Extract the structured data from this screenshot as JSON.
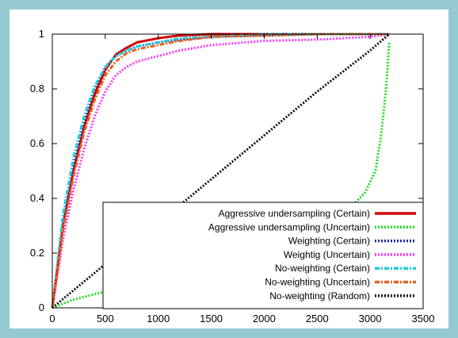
{
  "chart_data": {
    "type": "line",
    "title": "",
    "xlabel": "",
    "ylabel": "",
    "xlim": [
      0,
      3500
    ],
    "ylim": [
      0,
      1
    ],
    "x_ticks": [
      0,
      500,
      1000,
      1500,
      2000,
      2500,
      3000,
      3500
    ],
    "y_ticks": [
      0,
      0.2,
      0.4,
      0.6,
      0.8,
      1
    ],
    "x_tick_labels": [
      "0",
      "500",
      "1000",
      "1500",
      "2000",
      "2500",
      "3000",
      "3500"
    ],
    "y_tick_labels": [
      "0",
      "0.2",
      "0.4",
      "0.6",
      "0.8",
      "1"
    ],
    "grid": false,
    "legend_position": "bottom-right",
    "series": [
      {
        "name": "Aggressive undersampling (Certain)",
        "color": "#d40000",
        "dash": "solid",
        "x": [
          0,
          50,
          100,
          200,
          300,
          400,
          500,
          600,
          700,
          800,
          1000,
          1200,
          1500,
          2000,
          2500,
          3000,
          3180
        ],
        "y": [
          0.0,
          0.15,
          0.3,
          0.5,
          0.66,
          0.78,
          0.87,
          0.925,
          0.95,
          0.97,
          0.985,
          0.995,
          1.0,
          1.0,
          1.0,
          1.0,
          1.0
        ]
      },
      {
        "name": "Aggressive undersampling (Uncertain)",
        "color": "#22dd22",
        "dash": "dotted",
        "x": [
          0,
          200,
          500,
          1000,
          1500,
          2000,
          2500,
          2800,
          2950,
          3050,
          3100,
          3150,
          3180
        ],
        "y": [
          0.0,
          0.03,
          0.06,
          0.1,
          0.15,
          0.22,
          0.3,
          0.36,
          0.42,
          0.5,
          0.62,
          0.8,
          0.97
        ]
      },
      {
        "name": "Weighting (Certain)",
        "color": "#1a2aa8",
        "dash": "dotted",
        "x": [
          0,
          50,
          100,
          200,
          300,
          400,
          500,
          600,
          700,
          800,
          1000,
          1200,
          1500,
          2000,
          2500,
          3000,
          3180
        ],
        "y": [
          0.0,
          0.16,
          0.32,
          0.52,
          0.68,
          0.8,
          0.88,
          0.92,
          0.94,
          0.955,
          0.97,
          0.98,
          0.99,
          0.995,
          1.0,
          1.0,
          1.0
        ]
      },
      {
        "name": "Weightig (Uncertain)",
        "color": "#ff33ff",
        "dash": "dotted",
        "x": [
          0,
          50,
          100,
          200,
          300,
          400,
          500,
          600,
          700,
          800,
          1000,
          1200,
          1500,
          2000,
          2500,
          3000,
          3180
        ],
        "y": [
          0.0,
          0.12,
          0.25,
          0.43,
          0.58,
          0.7,
          0.79,
          0.85,
          0.88,
          0.9,
          0.92,
          0.94,
          0.96,
          0.975,
          0.98,
          0.99,
          1.0
        ]
      },
      {
        "name": "No-weighting (Certain)",
        "color": "#22ccdd",
        "dash": "dashdot",
        "x": [
          0,
          50,
          100,
          200,
          300,
          400,
          500,
          600,
          700,
          800,
          1000,
          1200,
          1500,
          2000,
          2500,
          3000,
          3180
        ],
        "y": [
          0.0,
          0.17,
          0.34,
          0.55,
          0.7,
          0.81,
          0.88,
          0.92,
          0.94,
          0.955,
          0.97,
          0.985,
          0.99,
          1.0,
          1.0,
          1.0,
          1.0
        ]
      },
      {
        "name": "No-weighting (Uncertain)",
        "color": "#e8601c",
        "dash": "dashdot",
        "x": [
          0,
          50,
          100,
          200,
          300,
          400,
          500,
          600,
          700,
          800,
          1000,
          1200,
          1500,
          2000,
          2500,
          3000,
          3180
        ],
        "y": [
          0.0,
          0.14,
          0.28,
          0.48,
          0.64,
          0.76,
          0.85,
          0.9,
          0.93,
          0.945,
          0.96,
          0.975,
          0.99,
          0.995,
          1.0,
          1.0,
          1.0
        ]
      },
      {
        "name": "No-weighting (Random)",
        "color": "#111111",
        "dash": "dotted",
        "x": [
          0,
          500,
          1000,
          1500,
          2000,
          2500,
          3000,
          3180
        ],
        "y": [
          0.0,
          0.16,
          0.31,
          0.47,
          0.63,
          0.79,
          0.94,
          1.0
        ]
      }
    ]
  }
}
